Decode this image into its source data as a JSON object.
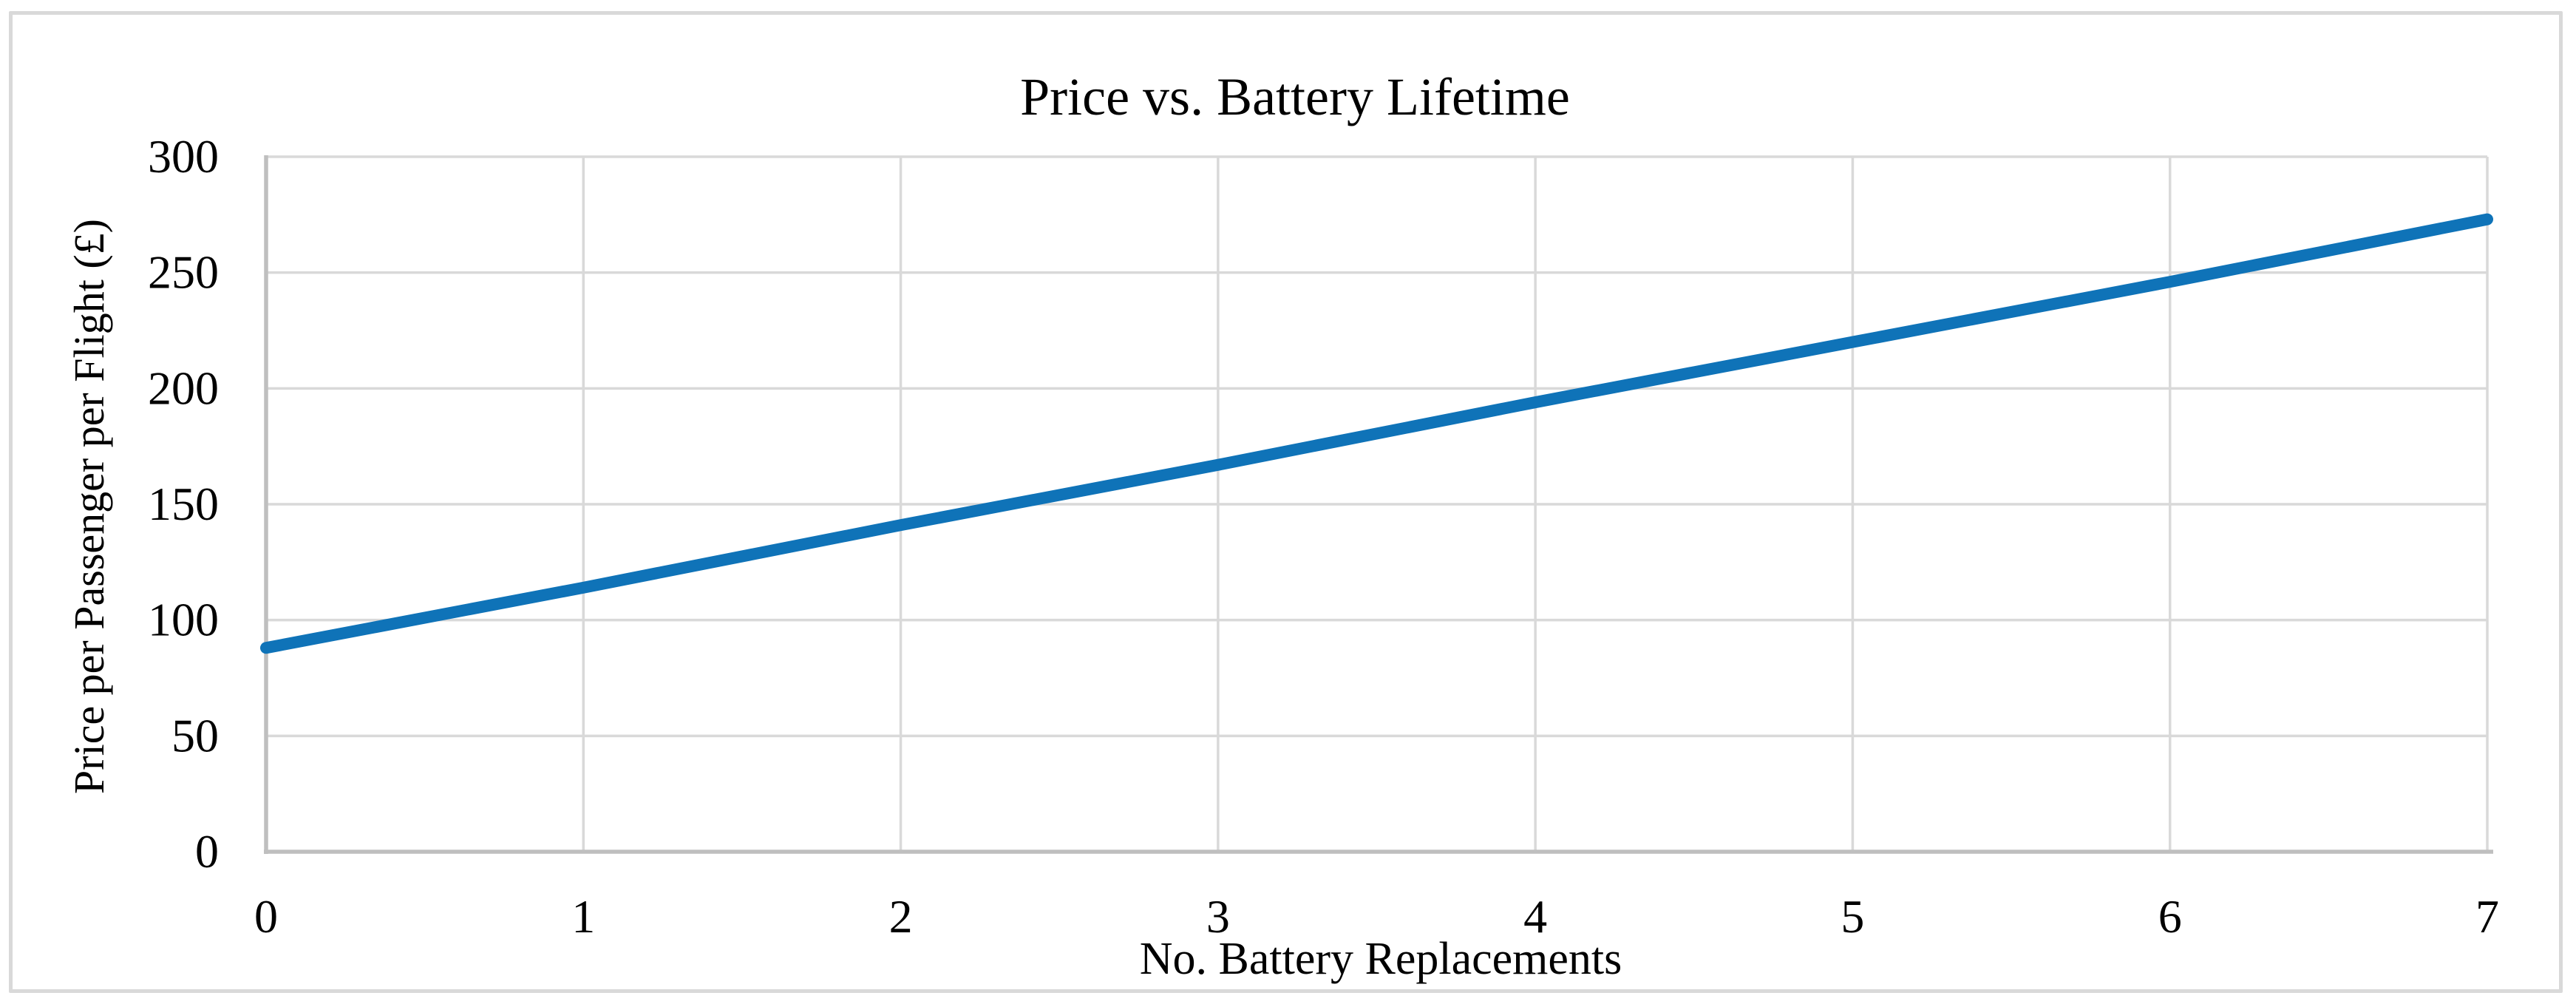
{
  "chart_data": {
    "type": "line",
    "title": "Price vs. Battery Lifetime",
    "xlabel": "No. Battery Replacements",
    "ylabel": "Price per Passenger per Flight (£)",
    "x": [
      0,
      1,
      2,
      3,
      4,
      5,
      6,
      7
    ],
    "series": [
      {
        "name": "price-per-passenger-per-flight",
        "values": [
          88,
          114,
          141,
          167,
          194,
          220,
          246,
          273
        ]
      }
    ],
    "xlim": [
      0,
      7
    ],
    "ylim": [
      0,
      300
    ],
    "x_ticks": [
      0,
      1,
      2,
      3,
      4,
      5,
      6,
      7
    ],
    "y_ticks": [
      0,
      50,
      100,
      150,
      200,
      250,
      300
    ],
    "grid": true,
    "legend": "none",
    "colors": {
      "line": "#0F73B8",
      "gridline": "#D9D9D9",
      "axis_line": "#BFBFBF",
      "figure_border": "#D9D9D9",
      "text": "#000000",
      "background": "#FFFFFF"
    }
  }
}
